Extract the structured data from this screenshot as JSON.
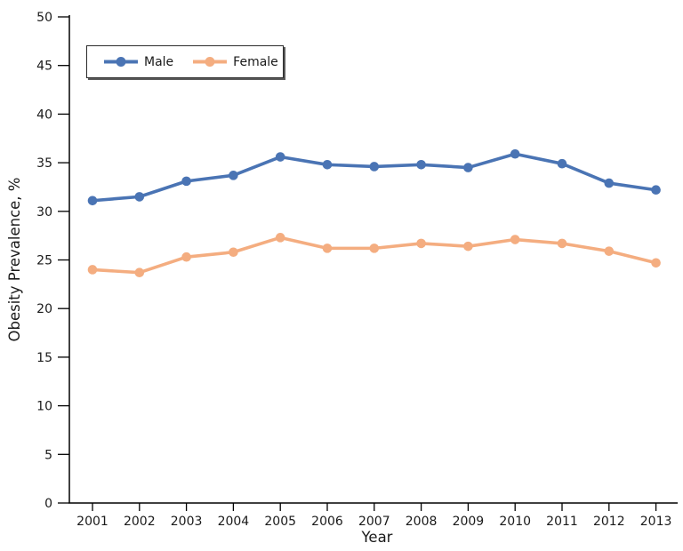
{
  "figure": {
    "background": "#ffffff",
    "text_color": "#1a1a1a",
    "axis_color": "#000000"
  },
  "chart_data": {
    "type": "line",
    "title": "",
    "xlabel": "Year",
    "ylabel": "Obesity Prevalence, %",
    "x": [
      2001,
      2002,
      2003,
      2004,
      2005,
      2006,
      2007,
      2008,
      2009,
      2010,
      2011,
      2012,
      2013
    ],
    "series": [
      {
        "name": "Male",
        "color": "#4a74b4",
        "values": [
          31.1,
          31.5,
          33.1,
          33.7,
          35.6,
          34.8,
          34.6,
          34.8,
          34.5,
          35.9,
          34.9,
          32.9,
          32.2
        ]
      },
      {
        "name": "Female",
        "color": "#f4ad80",
        "values": [
          24.0,
          23.7,
          25.3,
          25.8,
          27.3,
          26.2,
          26.2,
          26.7,
          26.4,
          27.1,
          26.7,
          25.9,
          24.7
        ]
      }
    ],
    "ylim": [
      0,
      50
    ],
    "ytick_step": 5,
    "yticks": [
      0,
      5,
      10,
      15,
      20,
      25,
      30,
      35,
      40,
      45,
      50
    ],
    "grid": false,
    "legend_position": "top-left",
    "marker": "circle"
  }
}
